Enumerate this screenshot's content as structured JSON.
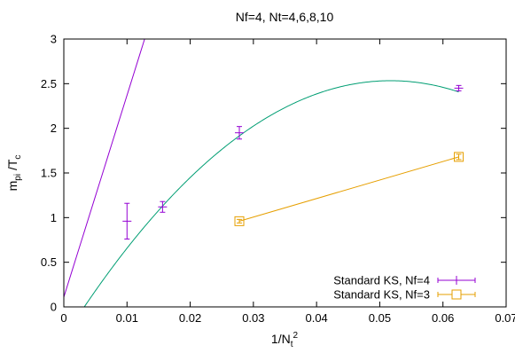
{
  "chart_data": {
    "type": "scatter",
    "title": "Nf=4, Nt=4,6,8,10",
    "xlabel": {
      "base": "1/N",
      "sub": "t",
      "sup": "2"
    },
    "ylabel": {
      "base": "m",
      "sub1": "pi",
      "mid": " /T",
      "sub2": "c"
    },
    "xlim": [
      0,
      0.07
    ],
    "ylim": [
      0,
      3
    ],
    "grid": false,
    "legend_position": "bottom-right",
    "x_ticks": [
      "0",
      "0.01",
      "0.02",
      "0.03",
      "0.04",
      "0.05",
      "0.06",
      "0.07"
    ],
    "y_ticks": [
      "0",
      "0.5",
      "1",
      "1.5",
      "2",
      "2.5",
      "3"
    ],
    "series": [
      {
        "name": "Standard KS, Nf=4",
        "color": "#9400d3",
        "marker": "plus",
        "x": [
          0.01,
          0.015625,
          0.027778,
          0.0625
        ],
        "y": [
          0.96,
          1.12,
          1.95,
          2.45
        ],
        "yerr": [
          0.2,
          0.06,
          0.07,
          0.03
        ]
      },
      {
        "name": "Standard KS, Nf=3",
        "color": "#e69f00",
        "marker": "square",
        "connected": true,
        "x": [
          0.027778,
          0.0625
        ],
        "y": [
          0.96,
          1.68
        ],
        "yerr": [
          0.02,
          0.03
        ]
      }
    ],
    "fits": [
      {
        "type": "linear",
        "color": "#9400d3",
        "intercept": 0.11,
        "slope": 226
      },
      {
        "type": "quadratic",
        "color": "#009e73",
        "a": -0.35,
        "b": 111.5,
        "c": -1078
      }
    ]
  }
}
